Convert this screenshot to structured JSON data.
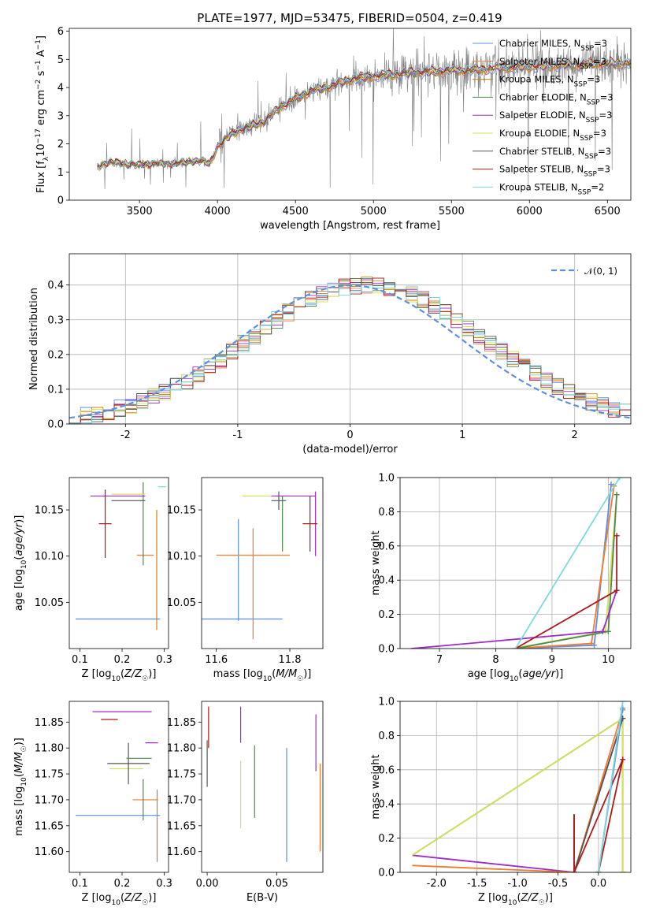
{
  "figure": {
    "title": "PLATE=1977, MJD=53475, FIBERID=0504, z=0.419"
  },
  "models": [
    {
      "name": "Chabrier MILES, N$_{SSP}$=3",
      "label_main": "Chabrier MILES, N",
      "label_sub": "SSP",
      "label_tail": "=3",
      "color": "#5b8ee6"
    },
    {
      "name": "Salpeter MILES, N$_{SSP}$=3",
      "label_main": "Salpeter MILES, N",
      "label_sub": "SSP",
      "label_tail": "=3",
      "color": "#f07c2e"
    },
    {
      "name": "Kroupa MILES, N$_{SSP}$=3",
      "label_main": "Kroupa MILES, N",
      "label_sub": "SSP",
      "label_tail": "=3",
      "color": "#c8821c"
    },
    {
      "name": "Chabrier ELODIE, N$_{SSP}$=3",
      "label_main": "Chabrier ELODIE, N",
      "label_sub": "SSP",
      "label_tail": "=3",
      "color": "#4f8a4f"
    },
    {
      "name": "Salpeter ELODIE, N$_{SSP}$=3",
      "label_main": "Salpeter ELODIE, N",
      "label_sub": "SSP",
      "label_tail": "=3",
      "color": "#a02cc8"
    },
    {
      "name": "Kroupa ELODIE, N$_{SSP}$=3",
      "label_main": "Kroupa ELODIE, N",
      "label_sub": "SSP",
      "label_tail": "=3",
      "color": "#d6e05a"
    },
    {
      "name": "Chabrier STELIB, N$_{SSP}$=3",
      "label_main": "Chabrier STELIB, N",
      "label_sub": "SSP",
      "label_tail": "=3",
      "color": "#555555"
    },
    {
      "name": "Salpeter STELIB, N$_{SSP}$=3",
      "label_main": "Salpeter STELIB, N",
      "label_sub": "SSP",
      "label_tail": "=3",
      "color": "#b01818"
    },
    {
      "name": "Kroupa STELIB, N$_{SSP}$=2",
      "label_main": "Kroupa STELIB, N",
      "label_sub": "SSP",
      "label_tail": "=2",
      "color": "#7fd8e0"
    }
  ],
  "chart_data": [
    {
      "type": "line",
      "panel": "spectrum",
      "xlabel": "wavelength [Angstrom, rest frame]",
      "ylabel": "Flux [f_λ 10^-17 erg cm^-2 s^-1 A^-1]",
      "xlim": [
        3050,
        6650
      ],
      "ylim": [
        0,
        6.1
      ],
      "xticks": [
        3500,
        4000,
        4500,
        5000,
        5500,
        6000,
        6500
      ],
      "yticks": [
        0,
        1,
        2,
        3,
        4,
        5,
        6
      ],
      "legend": "top-right",
      "data_color": "#808080",
      "model_curve": {
        "x": [
          3230,
          3300,
          3400,
          3500,
          3600,
          3700,
          3800,
          3900,
          3950,
          4000,
          4100,
          4200,
          4300,
          4400,
          4500,
          4600,
          4700,
          4800,
          4900,
          5000,
          5100,
          5200,
          5300,
          5400,
          5500,
          5600,
          5700,
          5800,
          5900,
          6000,
          6100,
          6200,
          6300,
          6400,
          6500,
          6600
        ],
        "y": [
          1.2,
          1.35,
          1.3,
          1.25,
          1.3,
          1.3,
          1.35,
          1.4,
          1.3,
          1.9,
          2.4,
          2.6,
          2.8,
          3.3,
          3.6,
          3.9,
          4.0,
          4.2,
          4.35,
          4.4,
          4.45,
          4.5,
          4.55,
          4.55,
          4.6,
          4.6,
          4.65,
          4.7,
          4.7,
          4.75,
          4.75,
          4.8,
          4.8,
          4.85,
          4.85,
          4.85
        ]
      }
    },
    {
      "type": "line",
      "panel": "residuals",
      "xlabel": "(data-model)/error",
      "ylabel": "Normed distribution",
      "xlim": [
        -2.5,
        2.5
      ],
      "ylim": [
        0,
        0.49
      ],
      "xticks": [
        -2,
        -1,
        0,
        1,
        2
      ],
      "yticks": [
        0.0,
        0.1,
        0.2,
        0.3,
        0.4
      ],
      "grid": true,
      "legend": "top-right",
      "reference": {
        "name": "𝒩(0, 1)",
        "color": "#5b8ee6",
        "style": "dashed"
      },
      "histogram_bin_width": 0.1,
      "histogram_edges": [
        -2.5,
        2.5
      ]
    },
    {
      "type": "scatter",
      "panel": "Z-age",
      "xlabel": "Z [log10(Z/Z☉)]",
      "ylabel": "age [log10(age/yr)]",
      "xlim": [
        0.075,
        0.31
      ],
      "ylim": [
        10.0,
        10.185
      ],
      "xticks": [
        0.1,
        0.2,
        0.3
      ],
      "yticks": [
        10.05,
        10.1,
        10.15
      ],
      "points": [
        {
          "m": 0,
          "x": 0.19,
          "xe": 0.1,
          "y": 10.032,
          "ye": 0.0
        },
        {
          "m": 1,
          "x": 0.255,
          "xe": 0.02,
          "y": 10.101,
          "ye": 0.0
        },
        {
          "m": 2,
          "x": 0.282,
          "xe": 0.0,
          "y": 10.085,
          "ye": 0.065
        },
        {
          "m": 3,
          "x": 0.25,
          "xe": 0.0,
          "y": 10.135,
          "ye": 0.045
        },
        {
          "m": 4,
          "x": 0.19,
          "xe": 0.065,
          "y": 10.165,
          "ye": 0.0
        },
        {
          "m": 5,
          "x": 0.215,
          "xe": 0.04,
          "y": 10.167,
          "ye": 0.0
        },
        {
          "m": 6,
          "x": 0.215,
          "xe": 0.04,
          "y": 10.16,
          "ye": 0.0
        },
        {
          "m": 7,
          "x": 0.16,
          "xe": 0.015,
          "y": 10.135,
          "ye": 0.037
        },
        {
          "m": 8,
          "x": 0.295,
          "xe": 0.01,
          "y": 10.175,
          "ye": 0.0
        }
      ]
    },
    {
      "type": "scatter",
      "panel": "mass-age",
      "xlabel": "mass [log10(M/M☉)]",
      "ylabel": "",
      "xlim": [
        11.56,
        11.89
      ],
      "ylim": [
        10.0,
        10.185
      ],
      "xticks": [
        11.6,
        11.8
      ],
      "yticks": [
        10.05,
        10.1,
        10.15
      ],
      "points": [
        {
          "m": 0,
          "x": 11.67,
          "xe": 0.11,
          "y": 10.032,
          "ye": 0.0
        },
        {
          "m": 0,
          "x": 11.66,
          "xe": 0.0,
          "y": 10.085,
          "ye": 0.055
        },
        {
          "m": 1,
          "x": 11.7,
          "xe": 0.1,
          "y": 10.101,
          "ye": 0.0
        },
        {
          "m": 1,
          "x": 11.7,
          "xe": 0.0,
          "y": 10.07,
          "ye": 0.06
        },
        {
          "m": 3,
          "x": 11.78,
          "xe": 0.0,
          "y": 10.135,
          "ye": 0.03
        },
        {
          "m": 4,
          "x": 11.87,
          "xe": 0.0,
          "y": 10.135,
          "ye": 0.035
        },
        {
          "m": 5,
          "x": 11.72,
          "xe": 0.05,
          "y": 10.165,
          "ye": 0.0
        },
        {
          "m": 6,
          "x": 11.77,
          "xe": 0.02,
          "y": 10.16,
          "ye": 0.01
        },
        {
          "m": 7,
          "x": 11.855,
          "xe": 0.02,
          "y": 10.135,
          "ye": 0.03
        },
        {
          "m": 4,
          "x": 11.81,
          "xe": 0.06,
          "y": 10.165,
          "ye": 0.0
        }
      ]
    },
    {
      "type": "line",
      "panel": "age-weight",
      "xlabel": "age [log10(age/yr)]",
      "ylabel": "mass weight",
      "xlim": [
        6.3,
        10.4
      ],
      "ylim": [
        0,
        1.0
      ],
      "xticks": [
        7,
        8,
        9,
        10
      ],
      "yticks": [
        0.0,
        0.2,
        0.4,
        0.6,
        0.8,
        1.0
      ],
      "grid": true,
      "series": [
        {
          "m": 0,
          "x": [
            8.3,
            9.75,
            10.05
          ],
          "y": [
            0.0,
            0.02,
            0.96
          ]
        },
        {
          "m": 1,
          "x": [
            8.3,
            9.7,
            10.1
          ],
          "y": [
            0.0,
            0.03,
            0.95
          ]
        },
        {
          "m": 5,
          "x": [
            8.3,
            9.95,
            10.15
          ],
          "y": [
            0.0,
            0.1,
            0.9
          ]
        },
        {
          "m": 3,
          "x": [
            8.35,
            10.0,
            10.15
          ],
          "y": [
            0.0,
            0.1,
            0.9
          ]
        },
        {
          "m": 4,
          "x": [
            6.5,
            9.9,
            10.15
          ],
          "y": [
            0.0,
            0.1,
            0.34
          ]
        },
        {
          "m": 7,
          "x": [
            8.35,
            10.15,
            10.15
          ],
          "y": [
            0.0,
            0.34,
            0.66
          ]
        },
        {
          "m": 8,
          "x": [
            8.35,
            10.2
          ],
          "y": [
            0.0,
            1.0
          ]
        }
      ]
    },
    {
      "type": "scatter",
      "panel": "Z-mass",
      "xlabel": "Z [log10(Z/Z☉)]",
      "ylabel": "mass [log10(M/M☉)]",
      "xlim": [
        0.075,
        0.31
      ],
      "ylim": [
        11.56,
        11.89
      ],
      "xticks": [
        0.1,
        0.2,
        0.3
      ],
      "yticks": [
        11.6,
        11.65,
        11.7,
        11.75,
        11.8,
        11.85
      ],
      "points": [
        {
          "m": 0,
          "x": 0.19,
          "xe": 0.1,
          "y": 11.67,
          "ye": 0.0
        },
        {
          "m": 1,
          "x": 0.255,
          "xe": 0.03,
          "y": 11.7,
          "ye": 0.0
        },
        {
          "m": 2,
          "x": 0.283,
          "xe": 0.0,
          "y": 11.65,
          "ye": 0.07
        },
        {
          "m": 3,
          "x": 0.25,
          "xe": 0.0,
          "y": 11.7,
          "ye": 0.04
        },
        {
          "m": 4,
          "x": 0.2,
          "xe": 0.07,
          "y": 11.87,
          "ye": 0.0
        },
        {
          "m": 4,
          "x": 0.27,
          "xe": 0.015,
          "y": 11.81,
          "ye": 0.0
        },
        {
          "m": 5,
          "x": 0.21,
          "xe": 0.04,
          "y": 11.76,
          "ye": 0.0
        },
        {
          "m": 6,
          "x": 0.215,
          "xe": 0.05,
          "y": 11.77,
          "ye": 0.04
        },
        {
          "m": 3,
          "x": 0.24,
          "xe": 0.03,
          "y": 11.78,
          "ye": 0.0
        },
        {
          "m": 7,
          "x": 0.17,
          "xe": 0.02,
          "y": 11.855,
          "ye": 0.0
        }
      ]
    },
    {
      "type": "scatter",
      "panel": "EBV-mass",
      "xlabel": "E(B-V)",
      "ylabel": "",
      "xlim": [
        -0.004,
        0.083
      ],
      "ylim": [
        11.56,
        11.89
      ],
      "xticks": [
        0.0,
        0.05
      ],
      "yticks": [
        11.6,
        11.65,
        11.7,
        11.75,
        11.8,
        11.85
      ],
      "points": [
        {
          "m": 0,
          "x": 0.057,
          "xe": 0.0,
          "y": 11.69,
          "ye": 0.11
        },
        {
          "m": 1,
          "x": 0.081,
          "xe": 0.0,
          "y": 11.685,
          "ye": 0.085
        },
        {
          "m": 3,
          "x": 0.034,
          "xe": 0.0,
          "y": 11.735,
          "ye": 0.07
        },
        {
          "m": 4,
          "x": 0.024,
          "xe": 0.0,
          "y": 11.845,
          "ye": 0.035
        },
        {
          "m": 5,
          "x": 0.024,
          "xe": 0.0,
          "y": 11.71,
          "ye": 0.065
        },
        {
          "m": 6,
          "x": 0.0,
          "xe": 0.0,
          "y": 11.77,
          "ye": 0.045
        },
        {
          "m": 7,
          "x": 0.001,
          "xe": 0.0,
          "y": 11.84,
          "ye": 0.04
        },
        {
          "m": 4,
          "x": 0.078,
          "xe": 0.0,
          "y": 11.81,
          "ye": 0.055
        }
      ]
    },
    {
      "type": "line",
      "panel": "Z-weight",
      "xlabel": "Z [log10(Z/Z☉)]",
      "ylabel": "mass weight",
      "xlim": [
        -2.45,
        0.4
      ],
      "ylim": [
        0,
        1.0
      ],
      "xticks": [
        -2.0,
        -1.5,
        -1.0,
        -0.5,
        0.0
      ],
      "yticks": [
        0.0,
        0.2,
        0.4,
        0.6,
        0.8,
        1.0
      ],
      "grid": true,
      "series": [
        {
          "m": 4,
          "x": [
            -2.3,
            -0.3,
            0.3
          ],
          "y": [
            0.1,
            0.0,
            0.9
          ]
        },
        {
          "m": 1,
          "x": [
            -2.3,
            -0.3,
            0.3
          ],
          "y": [
            0.04,
            0.0,
            0.95
          ]
        },
        {
          "m": 3,
          "x": [
            -2.3,
            0.3,
            0.3
          ],
          "y": [
            0.1,
            0.9,
            0.0
          ]
        },
        {
          "m": 5,
          "x": [
            -2.3,
            0.3,
            0.3
          ],
          "y": [
            0.1,
            0.9,
            0.0
          ]
        },
        {
          "m": 6,
          "x": [
            -0.3,
            -0.3,
            0.3
          ],
          "y": [
            0.34,
            0.0,
            0.9
          ]
        },
        {
          "m": 7,
          "x": [
            -0.3,
            -0.3,
            0.3,
            0.0
          ],
          "y": [
            0.34,
            0.0,
            0.66,
            0.0
          ]
        },
        {
          "m": 0,
          "x": [
            0.0,
            0.3
          ],
          "y": [
            0.0,
            0.96
          ]
        },
        {
          "m": 8,
          "x": [
            0.0,
            0.3
          ],
          "y": [
            0.0,
            1.0
          ]
        }
      ]
    }
  ]
}
